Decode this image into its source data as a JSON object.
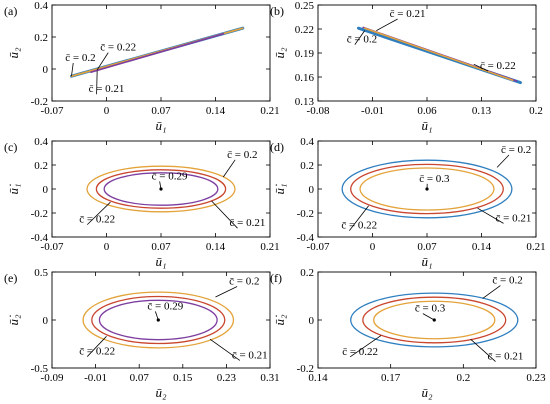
{
  "figure": {
    "panels": [
      {
        "id": "a",
        "label": "(a)"
      },
      {
        "id": "b",
        "label": "(b)"
      },
      {
        "id": "c",
        "label": "(c)"
      },
      {
        "id": "d",
        "label": "(d)"
      },
      {
        "id": "e",
        "label": "(e)"
      },
      {
        "id": "f",
        "label": "(f)"
      }
    ]
  },
  "chart_data": [
    {
      "panel": "a",
      "type": "line",
      "xlabel": "ū₁",
      "ylabel": "ū₂",
      "xlim": [
        -0.07,
        0.21
      ],
      "ylim": [
        -0.2,
        0.4
      ],
      "xticks": [
        -0.07,
        0,
        0.07,
        0.14,
        0.21
      ],
      "yticks": [
        -0.2,
        0,
        0.2,
        0.4
      ],
      "xtick_labels": [
        "-0.07",
        "0",
        "0.07",
        "0.14",
        "0.21"
      ],
      "ytick_labels": [
        "-0.2",
        "0",
        "0.2",
        "0.4"
      ],
      "series": [
        {
          "name": "c̄ = 0.2",
          "color": "#2f7fc0",
          "shape": "segment",
          "x": [
            -0.045,
            0.175
          ],
          "y": [
            -0.045,
            0.255
          ]
        },
        {
          "name": "c̄ = 0.21",
          "color": "#e3a33a",
          "shape": "segment",
          "x": [
            -0.045,
            0.175
          ],
          "y": [
            -0.045,
            0.255
          ]
        },
        {
          "name": "c̄ = 0.22",
          "color": "#7d3ea0",
          "shape": "segment",
          "x": [
            -0.02,
            0.15
          ],
          "y": [
            -0.02,
            0.22
          ]
        }
      ],
      "annotations": [
        {
          "text": "c̄ = 0.2",
          "at": [
            -0.053,
            0.05
          ],
          "tip": [
            -0.045,
            -0.045
          ]
        },
        {
          "text": "c̄ = 0.22",
          "at": [
            -0.008,
            0.115
          ],
          "tip": [
            -0.012,
            -0.005
          ]
        },
        {
          "text": "c̄ = 0.21",
          "at": [
            -0.023,
            -0.145
          ],
          "tip": [
            -0.012,
            -0.01
          ]
        }
      ]
    },
    {
      "panel": "b",
      "type": "line",
      "xlabel": "ū₁",
      "ylabel": "ū₂",
      "xlim": [
        -0.08,
        0.2
      ],
      "ylim": [
        0.13,
        0.25
      ],
      "xticks": [
        -0.08,
        -0.01,
        0.06,
        0.13,
        0.2
      ],
      "yticks": [
        0.13,
        0.16,
        0.19,
        0.22,
        0.25
      ],
      "xtick_labels": [
        "-0.08",
        "-0.01",
        "0.06",
        "0.13",
        "0.2"
      ],
      "ytick_labels": [
        "0.13",
        "0.16",
        "0.19",
        "0.22",
        "0.25"
      ],
      "series": [
        {
          "name": "c̄ = 0.2",
          "color": "#2f7fc0",
          "shape": "segment",
          "x": [
            -0.028,
            0.18
          ],
          "y": [
            0.221,
            0.153
          ]
        },
        {
          "name": "c̄ = 0.21",
          "color": "#7d3ea0",
          "shape": "segment",
          "x": [
            -0.022,
            0.175
          ],
          "y": [
            0.222,
            0.155
          ]
        },
        {
          "name": "c̄ = 0.22",
          "color": "#e3a33a",
          "shape": "segment",
          "x": [
            -0.02,
            0.17
          ],
          "y": [
            0.221,
            0.156
          ]
        }
      ],
      "annotations": [
        {
          "text": "c̄ = 0.21",
          "at": [
            0.012,
            0.235
          ],
          "tip": [
            -0.005,
            0.218
          ]
        },
        {
          "text": "c̄ = 0.2",
          "at": [
            -0.043,
            0.203
          ],
          "tip": [
            -0.02,
            0.218
          ]
        },
        {
          "text": "c̄ = 0.22",
          "at": [
            0.128,
            0.17
          ],
          "tip": [
            0.12,
            0.176
          ]
        }
      ]
    },
    {
      "panel": "c",
      "type": "line",
      "xlabel": "ū₁",
      "ylabel": "ū̇₁",
      "xlim": [
        -0.07,
        0.21
      ],
      "ylim": [
        -0.4,
        0.4
      ],
      "xticks": [
        -0.07,
        0,
        0.07,
        0.14,
        0.21
      ],
      "yticks": [
        -0.4,
        -0.2,
        0,
        0.2,
        0.4
      ],
      "xtick_labels": [
        "-0.07",
        "0",
        "0.07",
        "0.14",
        "0.21"
      ],
      "ytick_labels": [
        "-0.4",
        "-0.2",
        "0",
        "0.2",
        "0.4"
      ],
      "series": [
        {
          "name": "c̄ = 0.2",
          "color": "#e3a33a",
          "shape": "ellipse",
          "center": [
            0.07,
            0
          ],
          "rx": 0.095,
          "ry": 0.19
        },
        {
          "name": "c̄ = 0.21",
          "color": "#c9462f",
          "shape": "ellipse",
          "center": [
            0.07,
            0
          ],
          "rx": 0.083,
          "ry": 0.16
        },
        {
          "name": "c̄ = 0.22",
          "color": "#7d3ea0",
          "shape": "ellipse",
          "center": [
            0.07,
            0
          ],
          "rx": 0.073,
          "ry": 0.135
        },
        {
          "name": "c̄ = 0.29",
          "color": "#000000",
          "shape": "point",
          "x": [
            0.07
          ],
          "y": [
            0
          ]
        }
      ],
      "annotations": [
        {
          "text": "c̄ = 0.29",
          "at": [
            0.058,
            0.08
          ],
          "tip": [
            0.07,
            0
          ]
        },
        {
          "text": "c̄ = 0.2",
          "at": [
            0.155,
            0.26
          ],
          "tip": [
            0.15,
            0.1
          ]
        },
        {
          "text": "c̄ = 0.22",
          "at": [
            -0.035,
            -0.28
          ],
          "tip": [
            0.005,
            -0.11
          ]
        },
        {
          "text": "c̄ = 0.21",
          "at": [
            0.158,
            -0.31
          ],
          "tip": [
            0.135,
            -0.1
          ]
        }
      ]
    },
    {
      "panel": "d",
      "type": "line",
      "xlabel": "ū₁",
      "ylabel": "ū̇₁",
      "xlim": [
        -0.07,
        0.21
      ],
      "ylim": [
        -0.4,
        0.4
      ],
      "xticks": [
        -0.07,
        0,
        0.07,
        0.14,
        0.21
      ],
      "yticks": [
        -0.4,
        -0.2,
        0,
        0.2,
        0.4
      ],
      "xtick_labels": [
        "-0.07",
        "0",
        "0.07",
        "0.14",
        "0.21"
      ],
      "ytick_labels": [
        "-0.4",
        "-0.2",
        "0",
        "0.2",
        "0.4"
      ],
      "series": [
        {
          "name": "c̄ = 0.2",
          "color": "#2f7fc0",
          "shape": "ellipse",
          "center": [
            0.07,
            0
          ],
          "rx": 0.109,
          "ry": 0.24
        },
        {
          "name": "c̄ = 0.21",
          "color": "#c9462f",
          "shape": "ellipse",
          "center": [
            0.07,
            0
          ],
          "rx": 0.098,
          "ry": 0.205
        },
        {
          "name": "c̄ = 0.22",
          "color": "#e3a33a",
          "shape": "ellipse",
          "center": [
            0.07,
            0
          ],
          "rx": 0.086,
          "ry": 0.175
        },
        {
          "name": "c̄ = 0.3",
          "color": "#000000",
          "shape": "point",
          "x": [
            0.07
          ],
          "y": [
            0
          ]
        }
      ],
      "annotations": [
        {
          "text": "c̄ = 0.3",
          "at": [
            0.06,
            0.06
          ],
          "tip": [
            0.07,
            0
          ]
        },
        {
          "text": "c̄ = 0.2",
          "at": [
            0.165,
            0.3
          ],
          "tip": [
            0.16,
            0.18
          ]
        },
        {
          "text": "c̄ = 0.22",
          "at": [
            -0.04,
            -0.33
          ],
          "tip": [
            -0.005,
            -0.14
          ]
        },
        {
          "text": "c̄ = 0.21",
          "at": [
            0.158,
            -0.27
          ],
          "tip": [
            0.135,
            -0.16
          ]
        }
      ]
    },
    {
      "panel": "e",
      "type": "line",
      "xlabel": "ū₂",
      "ylabel": "ū̇₂",
      "xlim": [
        -0.09,
        0.31
      ],
      "ylim": [
        -0.5,
        0.5
      ],
      "xticks": [
        -0.09,
        -0.01,
        0.07,
        0.15,
        0.23,
        0.31
      ],
      "yticks": [
        -0.5,
        0,
        0.5
      ],
      "xtick_labels": [
        "-0.09",
        "-0.01",
        "0.07",
        "0.15",
        "0.23",
        "0.31"
      ],
      "ytick_labels": [
        "-0.5",
        "0",
        "0.5"
      ],
      "series": [
        {
          "name": "c̄ = 0.2",
          "color": "#e3a33a",
          "shape": "ellipse",
          "center": [
            0.105,
            0
          ],
          "rx": 0.138,
          "ry": 0.29
        },
        {
          "name": "c̄ = 0.21",
          "color": "#c9462f",
          "shape": "ellipse",
          "center": [
            0.105,
            0
          ],
          "rx": 0.122,
          "ry": 0.245
        },
        {
          "name": "c̄ = 0.22",
          "color": "#7d3ea0",
          "shape": "ellipse",
          "center": [
            0.105,
            0
          ],
          "rx": 0.108,
          "ry": 0.205
        },
        {
          "name": "c̄ = 0.29",
          "color": "#000000",
          "shape": "point",
          "x": [
            0.105
          ],
          "y": [
            0
          ]
        }
      ],
      "annotations": [
        {
          "text": "c̄ = 0.29",
          "at": [
            0.085,
            0.11
          ],
          "tip": [
            0.105,
            0
          ]
        },
        {
          "text": "c̄ = 0.2",
          "at": [
            0.235,
            0.37
          ],
          "tip": [
            0.21,
            0.24
          ]
        },
        {
          "text": "c̄ = 0.22",
          "at": [
            -0.04,
            -0.36
          ],
          "tip": [
            0.01,
            -0.17
          ]
        },
        {
          "text": "c̄ = 0.21",
          "at": [
            0.24,
            -0.4
          ],
          "tip": [
            0.2,
            -0.2
          ]
        }
      ]
    },
    {
      "panel": "f",
      "type": "line",
      "xlabel": "ū₂",
      "ylabel": "ū̇₂",
      "xlim": [
        0.14,
        0.23
      ],
      "ylim": [
        -0.2,
        0.2
      ],
      "xticks": [
        0.14,
        0.17,
        0.2,
        0.23
      ],
      "yticks": [
        -0.2,
        0,
        0.2
      ],
      "xtick_labels": [
        "0.14",
        "0.17",
        "0.2",
        "0.23"
      ],
      "ytick_labels": [
        "-0.2",
        "0",
        "0.2"
      ],
      "series": [
        {
          "name": "c̄ = 0.2",
          "color": "#2f7fc0",
          "shape": "ellipse",
          "center": [
            0.188,
            0
          ],
          "rx": 0.0345,
          "ry": 0.112
        },
        {
          "name": "c̄ = 0.21",
          "color": "#c9462f",
          "shape": "ellipse",
          "center": [
            0.188,
            0
          ],
          "rx": 0.0295,
          "ry": 0.095
        },
        {
          "name": "c̄ = 0.22",
          "color": "#e3a33a",
          "shape": "ellipse",
          "center": [
            0.188,
            0
          ],
          "rx": 0.025,
          "ry": 0.078
        },
        {
          "name": "c̄ = 0.3",
          "color": "#000000",
          "shape": "point",
          "x": [
            0.188
          ],
          "y": [
            0
          ]
        }
      ],
      "annotations": [
        {
          "text": "c̄ = 0.3",
          "at": [
            0.18,
            0.035
          ],
          "tip": [
            0.188,
            0
          ]
        },
        {
          "text": "c̄ = 0.2",
          "at": [
            0.212,
            0.152
          ],
          "tip": [
            0.208,
            0.09
          ]
        },
        {
          "text": "c̄ = 0.22",
          "at": [
            0.15,
            -0.145
          ],
          "tip": [
            0.166,
            -0.065
          ]
        },
        {
          "text": "c̄ = 0.21",
          "at": [
            0.21,
            -0.165
          ],
          "tip": [
            0.203,
            -0.08
          ]
        }
      ]
    }
  ]
}
